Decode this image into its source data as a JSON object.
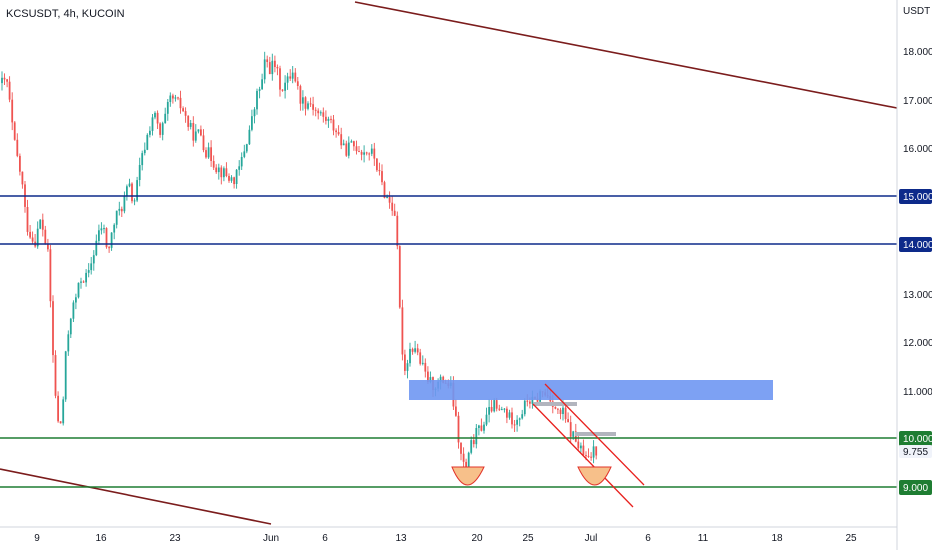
{
  "header": {
    "title": "KCSUSDT, 4h, KUCOIN",
    "currency": "USDT"
  },
  "colors": {
    "up": "#26a69a",
    "down": "#ef5350",
    "blue_line": "#0d2a8a",
    "green_line": "#1e7d32",
    "trend_line": "#7b1c1c",
    "zone": "#6f97f2",
    "channel": "#e8211e",
    "cup": "#f7c08a",
    "cup_stroke": "#e2342a",
    "grid_border": "#d1d4dc"
  },
  "chart_data": {
    "type": "candlestick",
    "title": "KCSUSDT, 4h, KUCOIN",
    "x_ticks": [
      "9",
      "16",
      "23",
      "Jun",
      "6",
      "13",
      "20",
      "25",
      "Jul",
      "6",
      "11",
      "18",
      "25"
    ],
    "y_ticks": [
      "18.000",
      "17.000",
      "16.000",
      "13.000",
      "12.000",
      "11.000"
    ],
    "ylim": [
      8.0,
      18.8
    ],
    "horizontal_levels": [
      {
        "label": "15.000",
        "value": 15.0,
        "color": "blue"
      },
      {
        "label": "14.000",
        "value": 14.0,
        "color": "blue"
      },
      {
        "label": "10.000",
        "value": 10.0,
        "color": "green"
      },
      {
        "label": "9.000",
        "value": 9.0,
        "color": "green"
      }
    ],
    "last_price": "9.755",
    "price_path": [
      [
        7.3,
        17.3
      ],
      [
        14.0,
        16.1
      ],
      [
        21.7,
        15.3
      ],
      [
        26.4,
        14.4
      ],
      [
        34.2,
        14.0
      ],
      [
        41.0,
        14.5
      ],
      [
        48.4,
        13.7
      ],
      [
        54.1,
        11.2
      ],
      [
        59.0,
        10.1
      ],
      [
        62.3,
        10.5
      ],
      [
        66.2,
        11.8
      ],
      [
        70.3,
        12.5
      ],
      [
        76.2,
        12.9
      ],
      [
        81.4,
        13.3
      ],
      [
        88.0,
        13.3
      ],
      [
        95.7,
        14.0
      ],
      [
        102.5,
        14.4
      ],
      [
        108.1,
        13.8
      ],
      [
        115.0,
        14.5
      ],
      [
        122.7,
        14.8
      ],
      [
        128.6,
        15.2
      ],
      [
        133.8,
        14.8
      ],
      [
        140.3,
        15.6
      ],
      [
        147.2,
        16.2
      ],
      [
        153.6,
        16.7
      ],
      [
        160.2,
        16.2
      ],
      [
        165.4,
        16.6
      ],
      [
        170.7,
        17.0
      ],
      [
        176.0,
        16.9
      ],
      [
        182.1,
        16.8
      ],
      [
        188.9,
        16.4
      ],
      [
        194.8,
        16.2
      ],
      [
        200.3,
        16.3
      ],
      [
        205.5,
        15.9
      ],
      [
        210.7,
        15.8
      ],
      [
        215.6,
        15.6
      ],
      [
        220.5,
        15.5
      ],
      [
        225.9,
        15.4
      ],
      [
        232.3,
        15.3
      ],
      [
        237.4,
        15.4
      ],
      [
        242.7,
        15.8
      ],
      [
        247.7,
        16.2
      ],
      [
        252.7,
        16.6
      ],
      [
        257.5,
        17.1
      ],
      [
        261.8,
        17.3
      ],
      [
        265.5,
        17.8
      ],
      [
        269.9,
        17.6
      ],
      [
        274.4,
        17.7
      ],
      [
        280.9,
        17.2
      ],
      [
        286.7,
        17.3
      ],
      [
        293.0,
        17.6
      ],
      [
        299.6,
        17.0
      ],
      [
        305.7,
        16.9
      ],
      [
        310.6,
        16.9
      ],
      [
        316.7,
        16.7
      ],
      [
        323.0,
        16.6
      ],
      [
        329.5,
        16.5
      ],
      [
        337.5,
        16.3
      ],
      [
        344.0,
        15.9
      ],
      [
        350.4,
        16.0
      ],
      [
        356.6,
        16.0
      ],
      [
        362.5,
        15.9
      ],
      [
        368.5,
        15.9
      ],
      [
        374.0,
        15.8
      ],
      [
        380.5,
        15.3
      ],
      [
        385.2,
        15.0
      ],
      [
        391.0,
        14.8
      ],
      [
        395.6,
        14.6
      ],
      [
        399.8,
        12.6
      ],
      [
        404.0,
        11.3
      ],
      [
        409.0,
        11.8
      ],
      [
        414.6,
        11.9
      ],
      [
        419.5,
        11.6
      ],
      [
        425.0,
        11.3
      ],
      [
        431.4,
        11.1
      ],
      [
        437.3,
        11.1
      ],
      [
        444.4,
        11.2
      ],
      [
        451.3,
        11.0
      ],
      [
        456.8,
        10.2
      ],
      [
        461.1,
        9.6
      ],
      [
        466.2,
        9.3
      ],
      [
        470.4,
        9.8
      ],
      [
        474.3,
        10.0
      ],
      [
        480.1,
        10.2
      ],
      [
        486.6,
        10.4
      ],
      [
        492.9,
        10.7
      ],
      [
        498.2,
        10.5
      ],
      [
        503.4,
        10.6
      ],
      [
        509.2,
        10.4
      ],
      [
        515.3,
        10.4
      ],
      [
        521.2,
        10.5
      ],
      [
        527.8,
        10.8
      ],
      [
        534.0,
        10.7
      ],
      [
        539.9,
        10.9
      ],
      [
        546.0,
        10.9
      ],
      [
        552.0,
        10.8
      ],
      [
        557.3,
        10.5
      ],
      [
        563.0,
        10.5
      ],
      [
        568.6,
        10.2
      ],
      [
        574.1,
        10.0
      ],
      [
        579.3,
        9.8
      ],
      [
        584.3,
        9.6
      ],
      [
        589.2,
        9.5
      ],
      [
        593.2,
        9.8
      ],
      [
        596.8,
        9.75
      ]
    ]
  }
}
